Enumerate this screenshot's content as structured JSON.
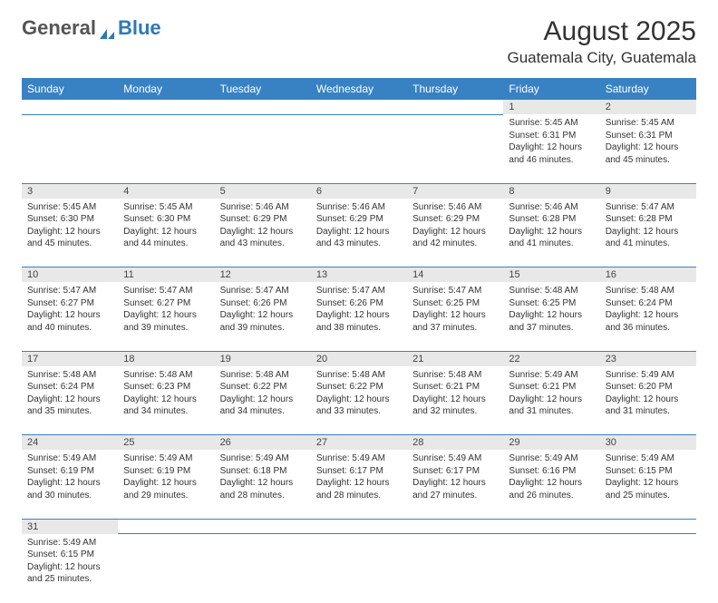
{
  "logo": {
    "text1": "General",
    "text2": "Blue"
  },
  "title": {
    "month": "August 2025",
    "location": "Guatemala City, Guatemala"
  },
  "colors": {
    "header_bg": "#3882c4",
    "header_fg": "#ffffff",
    "daynum_bg": "#e8e8e8",
    "rule": "#3882c4",
    "text": "#333333"
  },
  "weekdays": [
    "Sunday",
    "Monday",
    "Tuesday",
    "Wednesday",
    "Thursday",
    "Friday",
    "Saturday"
  ],
  "weeks": [
    [
      null,
      null,
      null,
      null,
      null,
      {
        "n": "1",
        "sr": "5:45 AM",
        "ss": "6:31 PM",
        "dl": "12 hours and 46 minutes."
      },
      {
        "n": "2",
        "sr": "5:45 AM",
        "ss": "6:31 PM",
        "dl": "12 hours and 45 minutes."
      }
    ],
    [
      {
        "n": "3",
        "sr": "5:45 AM",
        "ss": "6:30 PM",
        "dl": "12 hours and 45 minutes."
      },
      {
        "n": "4",
        "sr": "5:45 AM",
        "ss": "6:30 PM",
        "dl": "12 hours and 44 minutes."
      },
      {
        "n": "5",
        "sr": "5:46 AM",
        "ss": "6:29 PM",
        "dl": "12 hours and 43 minutes."
      },
      {
        "n": "6",
        "sr": "5:46 AM",
        "ss": "6:29 PM",
        "dl": "12 hours and 43 minutes."
      },
      {
        "n": "7",
        "sr": "5:46 AM",
        "ss": "6:29 PM",
        "dl": "12 hours and 42 minutes."
      },
      {
        "n": "8",
        "sr": "5:46 AM",
        "ss": "6:28 PM",
        "dl": "12 hours and 41 minutes."
      },
      {
        "n": "9",
        "sr": "5:47 AM",
        "ss": "6:28 PM",
        "dl": "12 hours and 41 minutes."
      }
    ],
    [
      {
        "n": "10",
        "sr": "5:47 AM",
        "ss": "6:27 PM",
        "dl": "12 hours and 40 minutes."
      },
      {
        "n": "11",
        "sr": "5:47 AM",
        "ss": "6:27 PM",
        "dl": "12 hours and 39 minutes."
      },
      {
        "n": "12",
        "sr": "5:47 AM",
        "ss": "6:26 PM",
        "dl": "12 hours and 39 minutes."
      },
      {
        "n": "13",
        "sr": "5:47 AM",
        "ss": "6:26 PM",
        "dl": "12 hours and 38 minutes."
      },
      {
        "n": "14",
        "sr": "5:47 AM",
        "ss": "6:25 PM",
        "dl": "12 hours and 37 minutes."
      },
      {
        "n": "15",
        "sr": "5:48 AM",
        "ss": "6:25 PM",
        "dl": "12 hours and 37 minutes."
      },
      {
        "n": "16",
        "sr": "5:48 AM",
        "ss": "6:24 PM",
        "dl": "12 hours and 36 minutes."
      }
    ],
    [
      {
        "n": "17",
        "sr": "5:48 AM",
        "ss": "6:24 PM",
        "dl": "12 hours and 35 minutes."
      },
      {
        "n": "18",
        "sr": "5:48 AM",
        "ss": "6:23 PM",
        "dl": "12 hours and 34 minutes."
      },
      {
        "n": "19",
        "sr": "5:48 AM",
        "ss": "6:22 PM",
        "dl": "12 hours and 34 minutes."
      },
      {
        "n": "20",
        "sr": "5:48 AM",
        "ss": "6:22 PM",
        "dl": "12 hours and 33 minutes."
      },
      {
        "n": "21",
        "sr": "5:48 AM",
        "ss": "6:21 PM",
        "dl": "12 hours and 32 minutes."
      },
      {
        "n": "22",
        "sr": "5:49 AM",
        "ss": "6:21 PM",
        "dl": "12 hours and 31 minutes."
      },
      {
        "n": "23",
        "sr": "5:49 AM",
        "ss": "6:20 PM",
        "dl": "12 hours and 31 minutes."
      }
    ],
    [
      {
        "n": "24",
        "sr": "5:49 AM",
        "ss": "6:19 PM",
        "dl": "12 hours and 30 minutes."
      },
      {
        "n": "25",
        "sr": "5:49 AM",
        "ss": "6:19 PM",
        "dl": "12 hours and 29 minutes."
      },
      {
        "n": "26",
        "sr": "5:49 AM",
        "ss": "6:18 PM",
        "dl": "12 hours and 28 minutes."
      },
      {
        "n": "27",
        "sr": "5:49 AM",
        "ss": "6:17 PM",
        "dl": "12 hours and 28 minutes."
      },
      {
        "n": "28",
        "sr": "5:49 AM",
        "ss": "6:17 PM",
        "dl": "12 hours and 27 minutes."
      },
      {
        "n": "29",
        "sr": "5:49 AM",
        "ss": "6:16 PM",
        "dl": "12 hours and 26 minutes."
      },
      {
        "n": "30",
        "sr": "5:49 AM",
        "ss": "6:15 PM",
        "dl": "12 hours and 25 minutes."
      }
    ],
    [
      {
        "n": "31",
        "sr": "5:49 AM",
        "ss": "6:15 PM",
        "dl": "12 hours and 25 minutes."
      },
      null,
      null,
      null,
      null,
      null,
      null
    ]
  ],
  "labels": {
    "sunrise": "Sunrise: ",
    "sunset": "Sunset: ",
    "daylight": "Daylight: "
  }
}
